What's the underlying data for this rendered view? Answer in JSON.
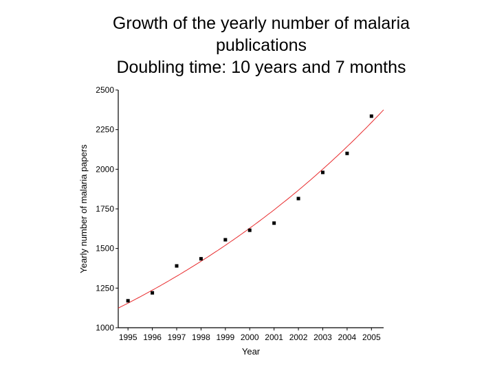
{
  "title_lines": [
    "Growth of the yearly number of malaria",
    "publications",
    "Doubling time: 10 years and 7 months"
  ],
  "chart_data": {
    "type": "scatter",
    "title": "Growth of the yearly number of malaria publications",
    "subtitle": "Doubling time: 10 years and 7 months",
    "xlabel": "Year",
    "ylabel": "Yearly number of malaria papers",
    "xlim": [
      1994.6,
      2005.5
    ],
    "ylim": [
      1000,
      2500
    ],
    "x_ticks": [
      "1995",
      "1996",
      "1997",
      "1998",
      "1999",
      "2000",
      "2001",
      "2002",
      "2003",
      "2004",
      "2005"
    ],
    "y_ticks": [
      1000,
      1250,
      1500,
      1750,
      2000,
      2250,
      2500
    ],
    "grid": false,
    "series": [
      {
        "x": [
          1995,
          1996,
          1997,
          1998,
          1999,
          2000,
          2001,
          2002,
          2003,
          2004,
          2005
        ],
        "y": [
          1170,
          1220,
          1390,
          1435,
          1555,
          1615,
          1660,
          1815,
          1980,
          2100,
          2335
        ],
        "marker": "square",
        "color": "#000000"
      }
    ],
    "fit": {
      "type": "exponential",
      "color": "#e8292b",
      "points": [
        [
          1994.6,
          1135
        ],
        [
          1995,
          1155
        ],
        [
          2000,
          1615
        ],
        [
          2005,
          2295
        ],
        [
          2005.5,
          2340
        ]
      ]
    }
  }
}
